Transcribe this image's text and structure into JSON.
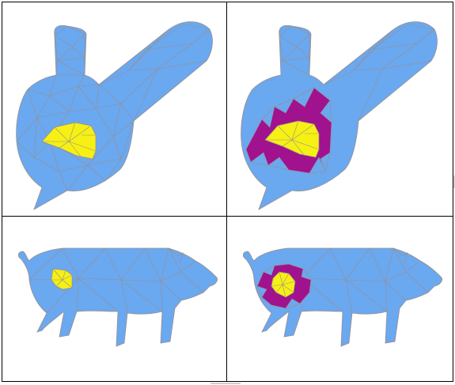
{
  "figure": {
    "panels": [
      {
        "id": "bunny-seed",
        "model": "bunny",
        "regions": [
          "seed"
        ]
      },
      {
        "id": "bunny-grown",
        "model": "bunny",
        "regions": [
          "seed",
          "ring"
        ]
      },
      {
        "id": "pig-seed",
        "model": "pig",
        "regions": [
          "seed"
        ]
      },
      {
        "id": "pig-grown",
        "model": "pig",
        "regions": [
          "seed",
          "ring"
        ]
      }
    ]
  },
  "colors": {
    "mesh_fill": "#6aa8f0",
    "mesh_fill_light": "#86bcf6",
    "mesh_edge": "#9a8f8a",
    "seed_region": "#f6f014",
    "ring_region": "#a0128e",
    "panel_border": "#000000"
  }
}
